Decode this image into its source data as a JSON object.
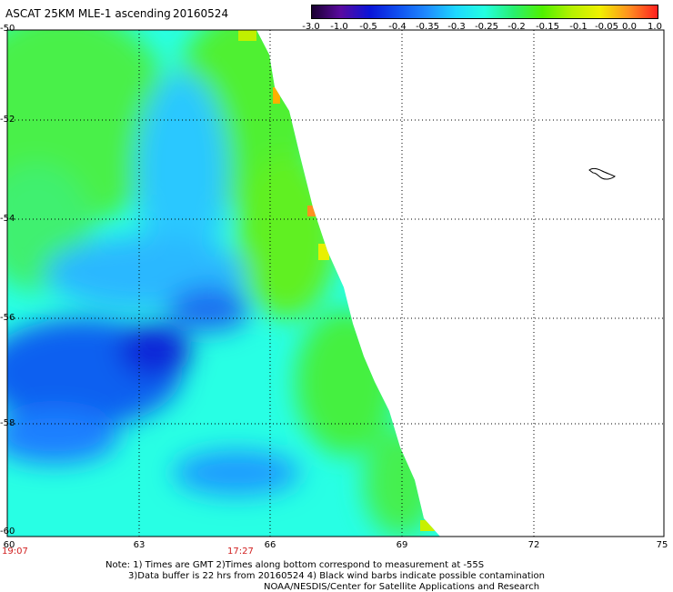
{
  "header": {
    "title": "ASCAT 25KM MLE-1 ascending",
    "date": "20160524"
  },
  "colorbar": {
    "labels": [
      "-3.0",
      "-1.0",
      "-0.5",
      "-0.4",
      "-0.35",
      "-0.3",
      "-0.25",
      "-0.2",
      "-0.15",
      "-0.1",
      "-0.05",
      "0.0",
      "1.0"
    ],
    "colors": [
      "#1a0030",
      "#5a0aa0",
      "#0a14d8",
      "#1050f0",
      "#1f8cff",
      "#1ed8ff",
      "#24ffe0",
      "#28f070",
      "#50f000",
      "#b4f000",
      "#f0f000",
      "#ff9020",
      "#ff2020"
    ]
  },
  "map": {
    "lat_labels": [
      "-50",
      "-52",
      "-54",
      "-56",
      "-58",
      "-60"
    ],
    "lon_labels": [
      "60",
      "63",
      "66",
      "69",
      "72",
      "75"
    ],
    "lat_range": [
      -60,
      -50
    ],
    "lon_range": [
      60,
      75
    ],
    "time_labels": [
      "19:07",
      "17:27"
    ]
  },
  "notes": {
    "line1": "Note: 1) Times are GMT 2)Times along bottom correspond to measurement at -55S",
    "line2": "3)Data buffer is 22 hrs from 20160524 4) Black wind barbs indicate possible contamination",
    "line3": "NOAA/NESDIS/Center for Satellite Applications and Research"
  }
}
